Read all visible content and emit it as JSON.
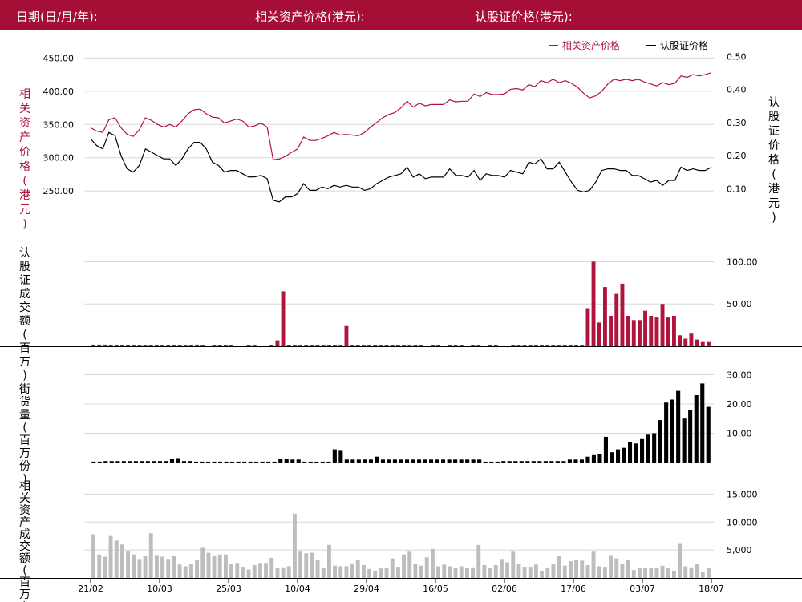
{
  "header": {
    "date_label": "日期(日/月/年):",
    "asset_label": "相关资产价格(港元):",
    "warrant_label": "认股证价格(港元):"
  },
  "colors": {
    "header_bg": "#a50e35",
    "asset": "#b0143d",
    "warrant": "#000000",
    "volume": "#b0143d",
    "outstanding": "#000000",
    "asset_turnover": "#bdbdbd",
    "grid": "#d8d8d8"
  },
  "chart_data": [
    {
      "type": "line",
      "legend": [
        "相关资产价格",
        "认股证价格"
      ],
      "legend_position": "top-right",
      "ylabel_left": "相关资产价格(港元)",
      "ylabel_right": "认股证价格(港元)",
      "yticks_left": [
        "450.00",
        "400.00",
        "350.00",
        "300.00",
        "250.00"
      ],
      "yticks_right": [
        "0.50",
        "0.40",
        "0.30",
        "0.20",
        "0.10"
      ],
      "ylim_left": [
        226,
        465
      ],
      "ylim_right": [
        0.045,
        0.525
      ],
      "series": [
        {
          "name": "相关资产价格",
          "axis": "left",
          "values": [
            345,
            340,
            338,
            357,
            360,
            345,
            335,
            332,
            342,
            360,
            356,
            350,
            346,
            350,
            346,
            355,
            366,
            372,
            373,
            366,
            361,
            360,
            352,
            355,
            358,
            355,
            346,
            348,
            352,
            346,
            297,
            298,
            302,
            308,
            313,
            331,
            326,
            326,
            329,
            333,
            338,
            334,
            335,
            334,
            333,
            338,
            346,
            353,
            360,
            365,
            368,
            375,
            385,
            376,
            382,
            378,
            380,
            380,
            380,
            387,
            384,
            385,
            385,
            396,
            392,
            398,
            395,
            395,
            396,
            403,
            404,
            402,
            410,
            407,
            416,
            413,
            418,
            413,
            416,
            412,
            406,
            397,
            390,
            393,
            400,
            411,
            418,
            416,
            418,
            416,
            418,
            414,
            411,
            408,
            413,
            410,
            412,
            423,
            421,
            425,
            423,
            425,
            428
          ]
        },
        {
          "name": "认股证价格",
          "axis": "right",
          "values": [
            0.25,
            0.23,
            0.22,
            0.27,
            0.26,
            0.2,
            0.16,
            0.15,
            0.17,
            0.22,
            0.21,
            0.2,
            0.19,
            0.19,
            0.17,
            0.19,
            0.22,
            0.24,
            0.24,
            0.22,
            0.18,
            0.17,
            0.15,
            0.155,
            0.155,
            0.145,
            0.135,
            0.136,
            0.14,
            0.13,
            0.065,
            0.06,
            0.075,
            0.075,
            0.085,
            0.115,
            0.095,
            0.095,
            0.105,
            0.1,
            0.11,
            0.105,
            0.11,
            0.105,
            0.105,
            0.095,
            0.1,
            0.115,
            0.125,
            0.135,
            0.14,
            0.145,
            0.165,
            0.135,
            0.145,
            0.13,
            0.135,
            0.135,
            0.135,
            0.16,
            0.14,
            0.14,
            0.135,
            0.155,
            0.125,
            0.145,
            0.14,
            0.14,
            0.135,
            0.155,
            0.15,
            0.145,
            0.18,
            0.175,
            0.19,
            0.16,
            0.16,
            0.18,
            0.15,
            0.12,
            0.095,
            0.09,
            0.095,
            0.12,
            0.155,
            0.16,
            0.16,
            0.155,
            0.155,
            0.14,
            0.14,
            0.13,
            0.12,
            0.125,
            0.11,
            0.125,
            0.125,
            0.165,
            0.155,
            0.16,
            0.155,
            0.155,
            0.165
          ]
        }
      ]
    },
    {
      "type": "bar",
      "ylabel": "认股证成交额(百万)",
      "yticks": [
        "100.00",
        "50.00"
      ],
      "ylim": [
        0,
        108
      ],
      "values": [
        2,
        2,
        2,
        1,
        1,
        1,
        1,
        1,
        1,
        1,
        1,
        1,
        1,
        1,
        1,
        1,
        1,
        1,
        2,
        1,
        0,
        1,
        1,
        1,
        1,
        0,
        0,
        1,
        1,
        0,
        0,
        1,
        7,
        65,
        1,
        1,
        1,
        1,
        1,
        1,
        1,
        1,
        1,
        1,
        24,
        1,
        1,
        1,
        1,
        1,
        1,
        1,
        1,
        1,
        1,
        1,
        1,
        1,
        0,
        1,
        1,
        0,
        1,
        1,
        1,
        0,
        1,
        1,
        0,
        1,
        1,
        0,
        0,
        1,
        1,
        1,
        1,
        1,
        1,
        1,
        1,
        1,
        1,
        1,
        1,
        1,
        45,
        100,
        28,
        70,
        36,
        62,
        74,
        36,
        31,
        31,
        42,
        36,
        34,
        50,
        34,
        36,
        13,
        9,
        15,
        8,
        5,
        5
      ]
    },
    {
      "type": "bar",
      "ylabel": "街货量(百万份)",
      "yticks": [
        "30.00",
        "20.00",
        "10.00"
      ],
      "ylim": [
        0,
        31.5
      ],
      "values": [
        0.3,
        0.3,
        0.5,
        0.5,
        0.5,
        0.5,
        0.5,
        0.5,
        0.5,
        0.5,
        0.5,
        0.5,
        0.5,
        1.3,
        1.5,
        0.5,
        0.5,
        0.3,
        0.3,
        0.3,
        0.3,
        0.3,
        0.3,
        0.3,
        0.3,
        0.3,
        0.3,
        0.3,
        0.3,
        0.3,
        0.3,
        1.2,
        1.2,
        1,
        1,
        0.3,
        0.3,
        0.3,
        0.3,
        0.3,
        4.5,
        4,
        1,
        1,
        1,
        1,
        1,
        2,
        1,
        1,
        1,
        1,
        1,
        1,
        1,
        1,
        1,
        1,
        1,
        1,
        1,
        1,
        1,
        1,
        1,
        0.3,
        0.3,
        0.3,
        0.5,
        0.5,
        0.5,
        0.5,
        0.5,
        0.5,
        0.5,
        0.5,
        0.5,
        0.5,
        0.5,
        1,
        1,
        1,
        2,
        2.8,
        3,
        8.8,
        3.5,
        4.5,
        5,
        7,
        6.5,
        8,
        9.5,
        10,
        14.5,
        20.5,
        21.5,
        24.5,
        15,
        18,
        23,
        27,
        19
      ]
    },
    {
      "type": "bar",
      "ylabel": "相关资产成交额(百万)",
      "yticks": [
        "15,000",
        "10,000",
        "5,000"
      ],
      "ylim": [
        0,
        17500
      ],
      "values": [
        7800,
        4200,
        3800,
        7500,
        6700,
        6000,
        4800,
        4200,
        3400,
        4000,
        8000,
        4100,
        3800,
        3400,
        3900,
        2400,
        2100,
        2500,
        3300,
        5400,
        4500,
        3900,
        4200,
        4200,
        2600,
        2700,
        2000,
        1500,
        2300,
        2700,
        2700,
        3600,
        1700,
        1900,
        2100,
        11500,
        4700,
        4400,
        4500,
        3300,
        1800,
        5900,
        2200,
        2100,
        2100,
        2600,
        3300,
        2300,
        1600,
        1300,
        1700,
        1800,
        3500,
        2000,
        4200,
        4700,
        2600,
        2200,
        3700,
        5200,
        2100,
        2400,
        2100,
        1800,
        2100,
        1700,
        1900,
        5900,
        2300,
        1800,
        2300,
        3400,
        2800,
        4700,
        2500,
        2000,
        2000,
        2400,
        1300,
        1700,
        2500,
        3900,
        2200,
        3000,
        3300,
        3100,
        2300,
        4700,
        2100,
        2000,
        4100,
        3500,
        2600,
        3200,
        1400,
        1800,
        1800,
        1800,
        1800,
        2200,
        1700,
        1300,
        6100,
        2100,
        1900,
        2500,
        1100,
        1800
      ]
    }
  ],
  "x_axis": {
    "labels": [
      "21/02",
      "10/03",
      "25/03",
      "10/04",
      "29/04",
      "16/05",
      "02/06",
      "17/06",
      "03/07",
      "18/07"
    ]
  }
}
